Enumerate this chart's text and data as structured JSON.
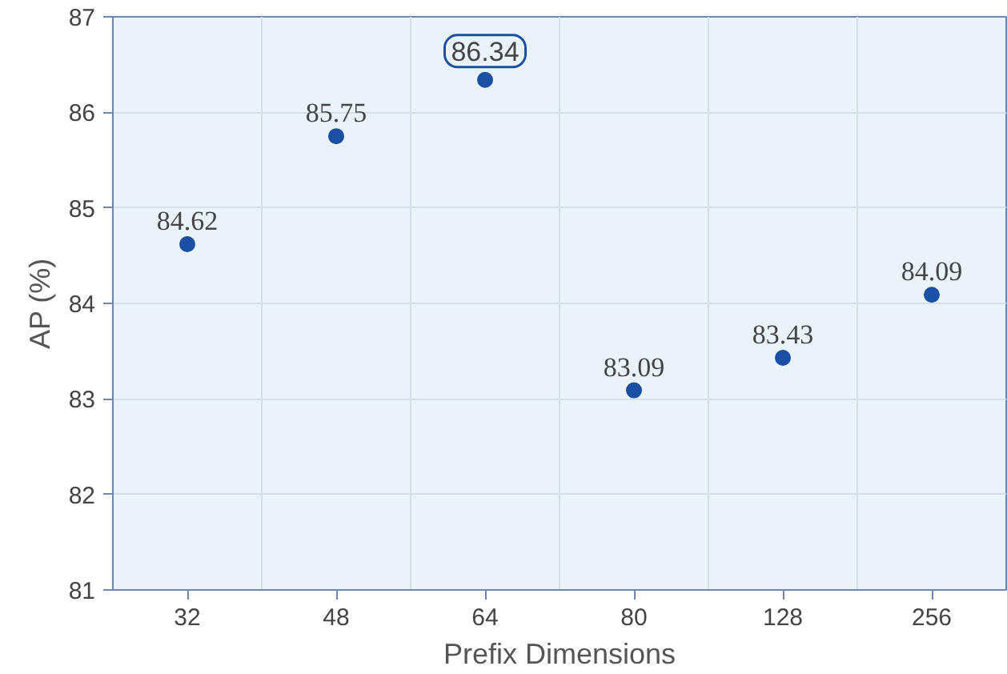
{
  "chart_data": {
    "type": "scatter",
    "xlabel": "Prefix Dimensions",
    "ylabel": "AP (%)",
    "categories": [
      "32",
      "48",
      "64",
      "80",
      "128",
      "256"
    ],
    "series": [
      {
        "color": "#1a4fa3",
        "values": [
          84.62,
          85.75,
          86.34,
          83.09,
          83.43,
          84.09
        ],
        "value_labels": [
          "84.62",
          "85.75",
          null,
          "83.09",
          "83.43",
          "84.09"
        ]
      }
    ],
    "annotations": [
      {
        "text": "86.34",
        "x": "64",
        "y": 86.34
      }
    ],
    "ylim": [
      81,
      87
    ],
    "yticks": [
      81,
      82,
      83,
      84,
      85,
      86,
      87
    ],
    "grid": true,
    "marker": "circle"
  }
}
